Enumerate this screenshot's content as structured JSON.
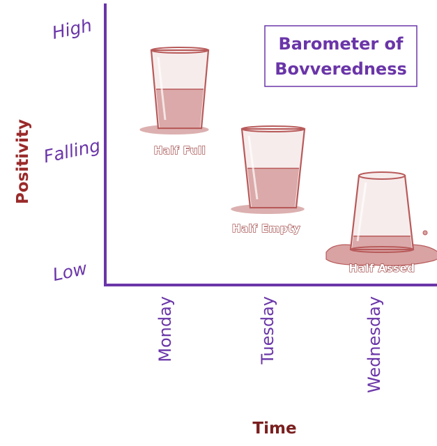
{
  "chart_data": {
    "type": "scatter",
    "title": "Barometer of Bovveredness",
    "xlabel": "Time",
    "ylabel": "Positivity",
    "categories": [
      "Monday",
      "Tuesday",
      "Wednesday"
    ],
    "y_levels": [
      "High",
      "Falling",
      "Low"
    ],
    "points": [
      {
        "x": "Monday",
        "y": "High",
        "label": "Half Full",
        "icon": "glass-half-full-icon"
      },
      {
        "x": "Tuesday",
        "y": "Falling",
        "label": "Half Empty",
        "icon": "glass-half-empty-icon"
      },
      {
        "x": "Wednesday",
        "y": "Low",
        "label": "Half Assed",
        "icon": "glass-upside-down-icon"
      }
    ]
  },
  "colors": {
    "axis": "#6a35a8",
    "tick_text": "#6a35a8",
    "ylabel": "#9a2a2a",
    "xlabel": "#7a1f1f",
    "title": "#6a35a8",
    "glass": "#b85a5a",
    "liquid": "#dba9a9"
  }
}
